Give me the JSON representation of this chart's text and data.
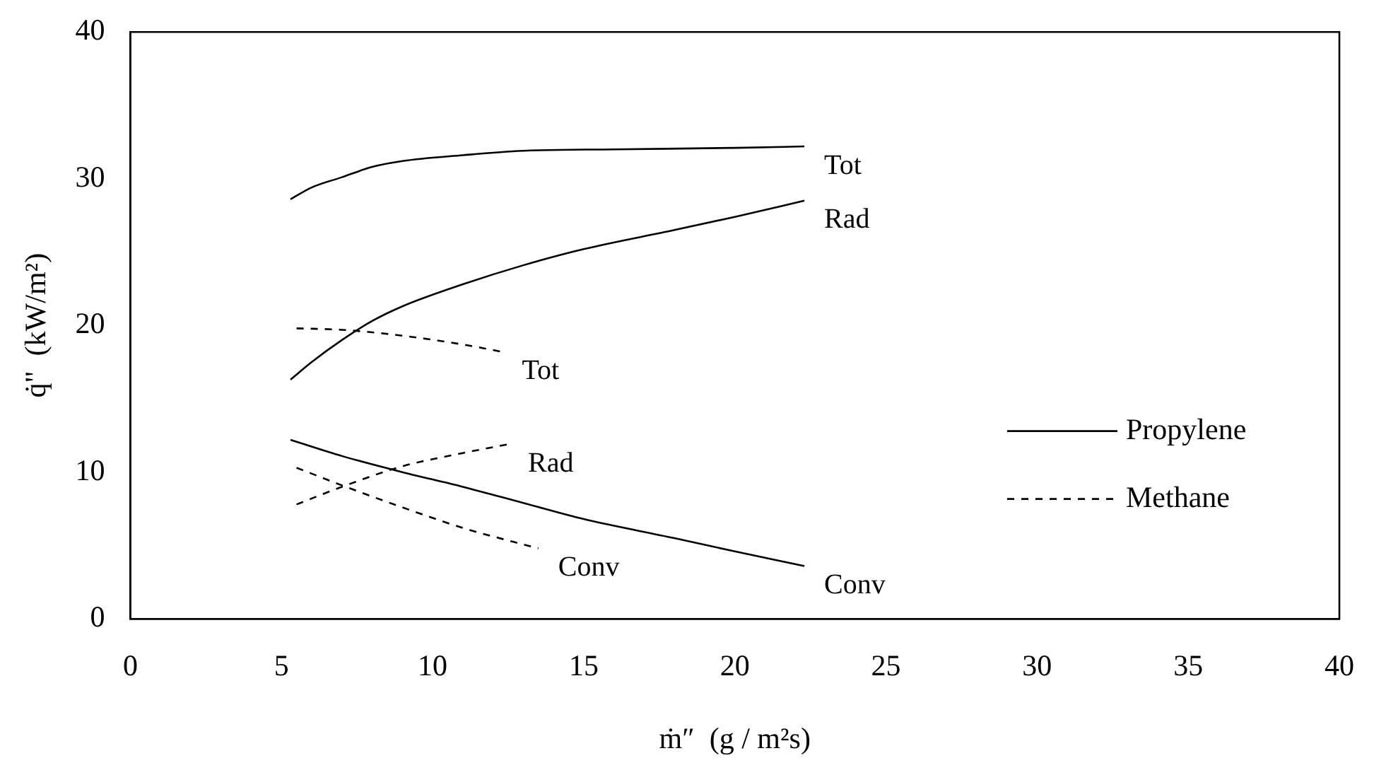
{
  "chart_data": {
    "type": "line",
    "xlabel": "ṁ″  (g / m²s)",
    "ylabel": "q̇\"  (kW/m²)",
    "xlim": [
      0,
      40
    ],
    "xticks": [
      0,
      5,
      10,
      15,
      20,
      25,
      30,
      35,
      40
    ],
    "ylim": [
      0,
      40
    ],
    "yticks": [
      0,
      10,
      20,
      30,
      40
    ],
    "grid": false,
    "legend": "right",
    "marker": "none",
    "series": [
      {
        "name": "Propylene",
        "color": "#000000",
        "line_style": "solid",
        "x": [
          5.3,
          6,
          7,
          8,
          9,
          11,
          13,
          16,
          20,
          22.3
        ],
        "values": [
          28.6,
          29.4,
          30.1,
          30.8,
          31.2,
          31.6,
          31.9,
          32.0,
          32.1,
          32.2
        ]
      },
      {
        "color": "#000000",
        "line_style": "solid",
        "x": [
          5.3,
          6,
          7,
          8,
          9,
          11,
          13,
          15,
          18,
          20,
          22.3
        ],
        "values": [
          16.3,
          17.5,
          19,
          20.3,
          21.3,
          22.8,
          24.1,
          25.2,
          26.5,
          27.4,
          28.5
        ]
      },
      {
        "color": "#000000",
        "line_style": "solid",
        "x": [
          5.3,
          7,
          9,
          11,
          13,
          15,
          18,
          20,
          22.3
        ],
        "values": [
          12.2,
          11.1,
          10,
          9,
          7.9,
          6.8,
          5.5,
          4.6,
          3.6
        ]
      },
      {
        "name": "Methane",
        "color": "#000000",
        "line_style": "dashed",
        "x": [
          5.5,
          7,
          9,
          11,
          12.3
        ],
        "values": [
          19.8,
          19.7,
          19.3,
          18.7,
          18.2
        ]
      },
      {
        "color": "#000000",
        "line_style": "dashed",
        "x": [
          5.5,
          7,
          9,
          11,
          12.5
        ],
        "values": [
          7.8,
          9.0,
          10.4,
          11.3,
          11.9
        ]
      },
      {
        "color": "#000000",
        "line_style": "dashed",
        "x": [
          5.5,
          7,
          9,
          11,
          13.5
        ],
        "values": [
          10.3,
          9.1,
          7.6,
          6.2,
          4.8
        ]
      }
    ],
    "annotations": [
      {
        "text": "Tot",
        "x": 22.3,
        "y": 32.2
      },
      {
        "text": "Rad",
        "x": 22.3,
        "y": 28.5
      },
      {
        "text": "Conv",
        "x": 22.3,
        "y": 3.6
      },
      {
        "text": "Tot",
        "x": 12.3,
        "y": 18.2
      },
      {
        "text": "Rad",
        "x": 12.5,
        "y": 11.9
      },
      {
        "text": "Conv",
        "x": 13.5,
        "y": 4.8
      }
    ]
  }
}
